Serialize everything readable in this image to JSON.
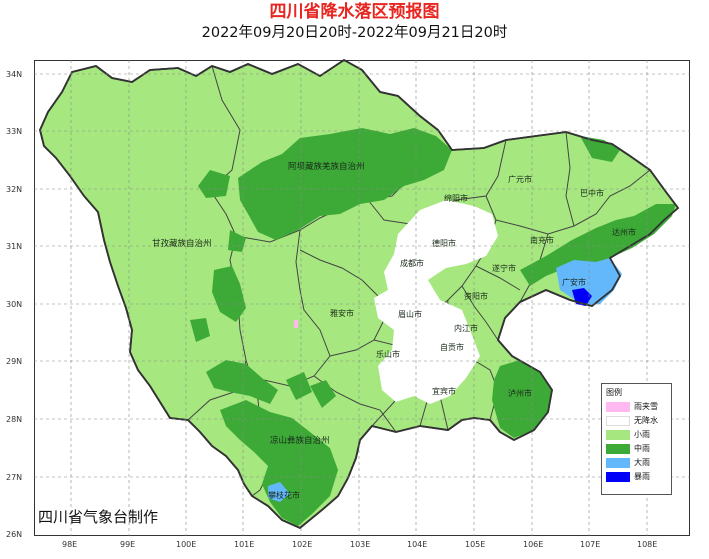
{
  "title": "四川省降水落区预报图",
  "subtitle": "2022年09月20日20时-2022年09月21日20时",
  "credit": "四川省气象台制作",
  "latitude_labels": [
    "34N",
    "33N",
    "32N",
    "31N",
    "30N",
    "29N",
    "28N",
    "27N",
    "26N"
  ],
  "longitude_labels": [
    "98E",
    "99E",
    "100E",
    "101E",
    "102E",
    "103E",
    "104E",
    "105E",
    "106E",
    "107E",
    "108E"
  ],
  "prefectures": [
    "阿坝藏族羌族自治州",
    "甘孜藏族自治州",
    "凉山彝族自治州"
  ],
  "cities": [
    "广元市",
    "巴中市",
    "绵阳市",
    "达州市",
    "德阳市",
    "南充市",
    "成都市",
    "遂宁市",
    "广安市",
    "雅安市",
    "资阳市",
    "眉山市",
    "内江市",
    "乐山市",
    "自贡市",
    "宜宾市",
    "泸州市",
    "攀枝花市"
  ],
  "legend": {
    "title": "图例",
    "items": [
      {
        "label": "雨夹雪",
        "color": "#ffb8f0"
      },
      {
        "label": "无降水",
        "color": "#ffffff"
      },
      {
        "label": "小雨",
        "color": "#a6e87f"
      },
      {
        "label": "中雨",
        "color": "#3daa38"
      },
      {
        "label": "大雨",
        "color": "#62b8fb"
      },
      {
        "label": "暴雨",
        "color": "#0000f8"
      }
    ]
  },
  "colors": {
    "title": "#e8251f",
    "light_rain": "#a6e87f",
    "moderate_rain": "#3daa38",
    "heavy_rain": "#62b8fb",
    "rainstorm": "#0000f8",
    "no_rain": "#ffffff",
    "sleet": "#ffb8f0"
  }
}
